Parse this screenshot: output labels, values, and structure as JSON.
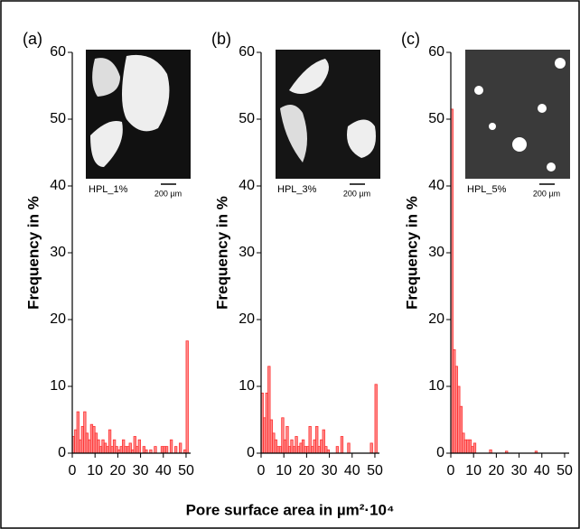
{
  "xlabel": "Pore surface area in µm²·10⁴",
  "chart_data": [
    {
      "type": "histogram",
      "panel": "(a)",
      "ylabel": "Frequency in %",
      "inset_label": "HPL_1%",
      "scale_label": "200 µm",
      "color": "#ff3030",
      "bins": [
        0,
        1,
        2,
        3,
        4,
        5,
        6,
        7,
        8,
        9,
        10,
        11,
        12,
        13,
        14,
        15,
        16,
        17,
        18,
        19,
        20,
        21,
        22,
        23,
        24,
        25,
        26,
        27,
        28,
        29,
        30,
        31,
        32,
        33,
        34,
        35,
        36,
        37,
        38,
        39,
        40,
        41,
        42,
        43,
        44,
        45,
        46,
        47,
        48,
        49,
        50,
        51,
        52
      ],
      "values": [
        2.5,
        3.5,
        6.2,
        2,
        4,
        6.2,
        3,
        2,
        4.3,
        4,
        3,
        2,
        1,
        2,
        1.5,
        1,
        3.5,
        1,
        2,
        1,
        0.5,
        1,
        2,
        1,
        1,
        1.5,
        0.5,
        2.5,
        1,
        2,
        0,
        1,
        0.5,
        0,
        0.5,
        0,
        1,
        0,
        0,
        1,
        1,
        1,
        0,
        2,
        0,
        1,
        0,
        1.5,
        0,
        0.5,
        16.8,
        0
      ],
      "xlim": [
        0,
        52
      ],
      "ylim": [
        0,
        60
      ],
      "xticks": [
        0,
        10,
        20,
        30,
        40,
        50
      ],
      "yticks": [
        0,
        10,
        20,
        30,
        40,
        50,
        60
      ]
    },
    {
      "type": "histogram",
      "panel": "(b)",
      "ylabel": "Frequency in %",
      "inset_label": "HPL_3%",
      "scale_label": "200 µm",
      "color": "#ff3030",
      "bins": [
        0,
        1,
        2,
        3,
        4,
        5,
        6,
        7,
        8,
        9,
        10,
        11,
        12,
        13,
        14,
        15,
        16,
        17,
        18,
        19,
        20,
        21,
        22,
        23,
        24,
        25,
        26,
        27,
        28,
        29,
        30,
        31,
        32,
        33,
        34,
        35,
        36,
        37,
        38,
        39,
        40,
        41,
        42,
        43,
        44,
        45,
        46,
        47,
        48,
        49,
        50,
        51,
        52
      ],
      "values": [
        9,
        5.3,
        9,
        13,
        5,
        3,
        2,
        1,
        1,
        5.3,
        2,
        4,
        1,
        2,
        1,
        2.5,
        1,
        1.5,
        2,
        1,
        1,
        4,
        1,
        2,
        4,
        1,
        2,
        3.5,
        1,
        0.5,
        0,
        0,
        0,
        1,
        0,
        2.5,
        0,
        0,
        1.5,
        0,
        0,
        0,
        0,
        0,
        0,
        0,
        0,
        0,
        1.5,
        0,
        10.3,
        0
      ],
      "xlim": [
        0,
        52
      ],
      "ylim": [
        0,
        60
      ],
      "xticks": [
        0,
        10,
        20,
        30,
        40,
        50
      ],
      "yticks": [
        0,
        10,
        20,
        30,
        40,
        50,
        60
      ]
    },
    {
      "type": "histogram",
      "panel": "(c)",
      "ylabel": "Frequency in %",
      "inset_label": "HPL_5%",
      "scale_label": "200 µm",
      "color": "#ff3030",
      "bins": [
        0,
        1,
        2,
        3,
        4,
        5,
        6,
        7,
        8,
        9,
        10,
        11,
        12,
        13,
        14,
        15,
        16,
        17,
        18,
        19,
        20,
        21,
        22,
        23,
        24,
        25,
        26,
        27,
        28,
        29,
        30,
        31,
        32,
        33,
        34,
        35,
        36,
        37,
        38,
        39,
        40,
        41,
        42,
        43,
        44,
        45,
        46,
        47,
        48,
        49,
        50,
        51,
        52
      ],
      "values": [
        51.5,
        15.5,
        13,
        10,
        7,
        3,
        2,
        2,
        2,
        1,
        1.5,
        0,
        0,
        0,
        0,
        0,
        0,
        0.5,
        0,
        0,
        0,
        0,
        0,
        0,
        0.3,
        0,
        0,
        0,
        0,
        0,
        0,
        0,
        0,
        0,
        0,
        0,
        0,
        0.3,
        0,
        0,
        0,
        0,
        0,
        0,
        0,
        0,
        0,
        0,
        0,
        0,
        0,
        0
      ],
      "xlim": [
        0,
        52
      ],
      "ylim": [
        0,
        60
      ],
      "xticks": [
        0,
        10,
        20,
        30,
        40,
        50
      ],
      "yticks": [
        0,
        10,
        20,
        30,
        40,
        50,
        60
      ]
    }
  ]
}
